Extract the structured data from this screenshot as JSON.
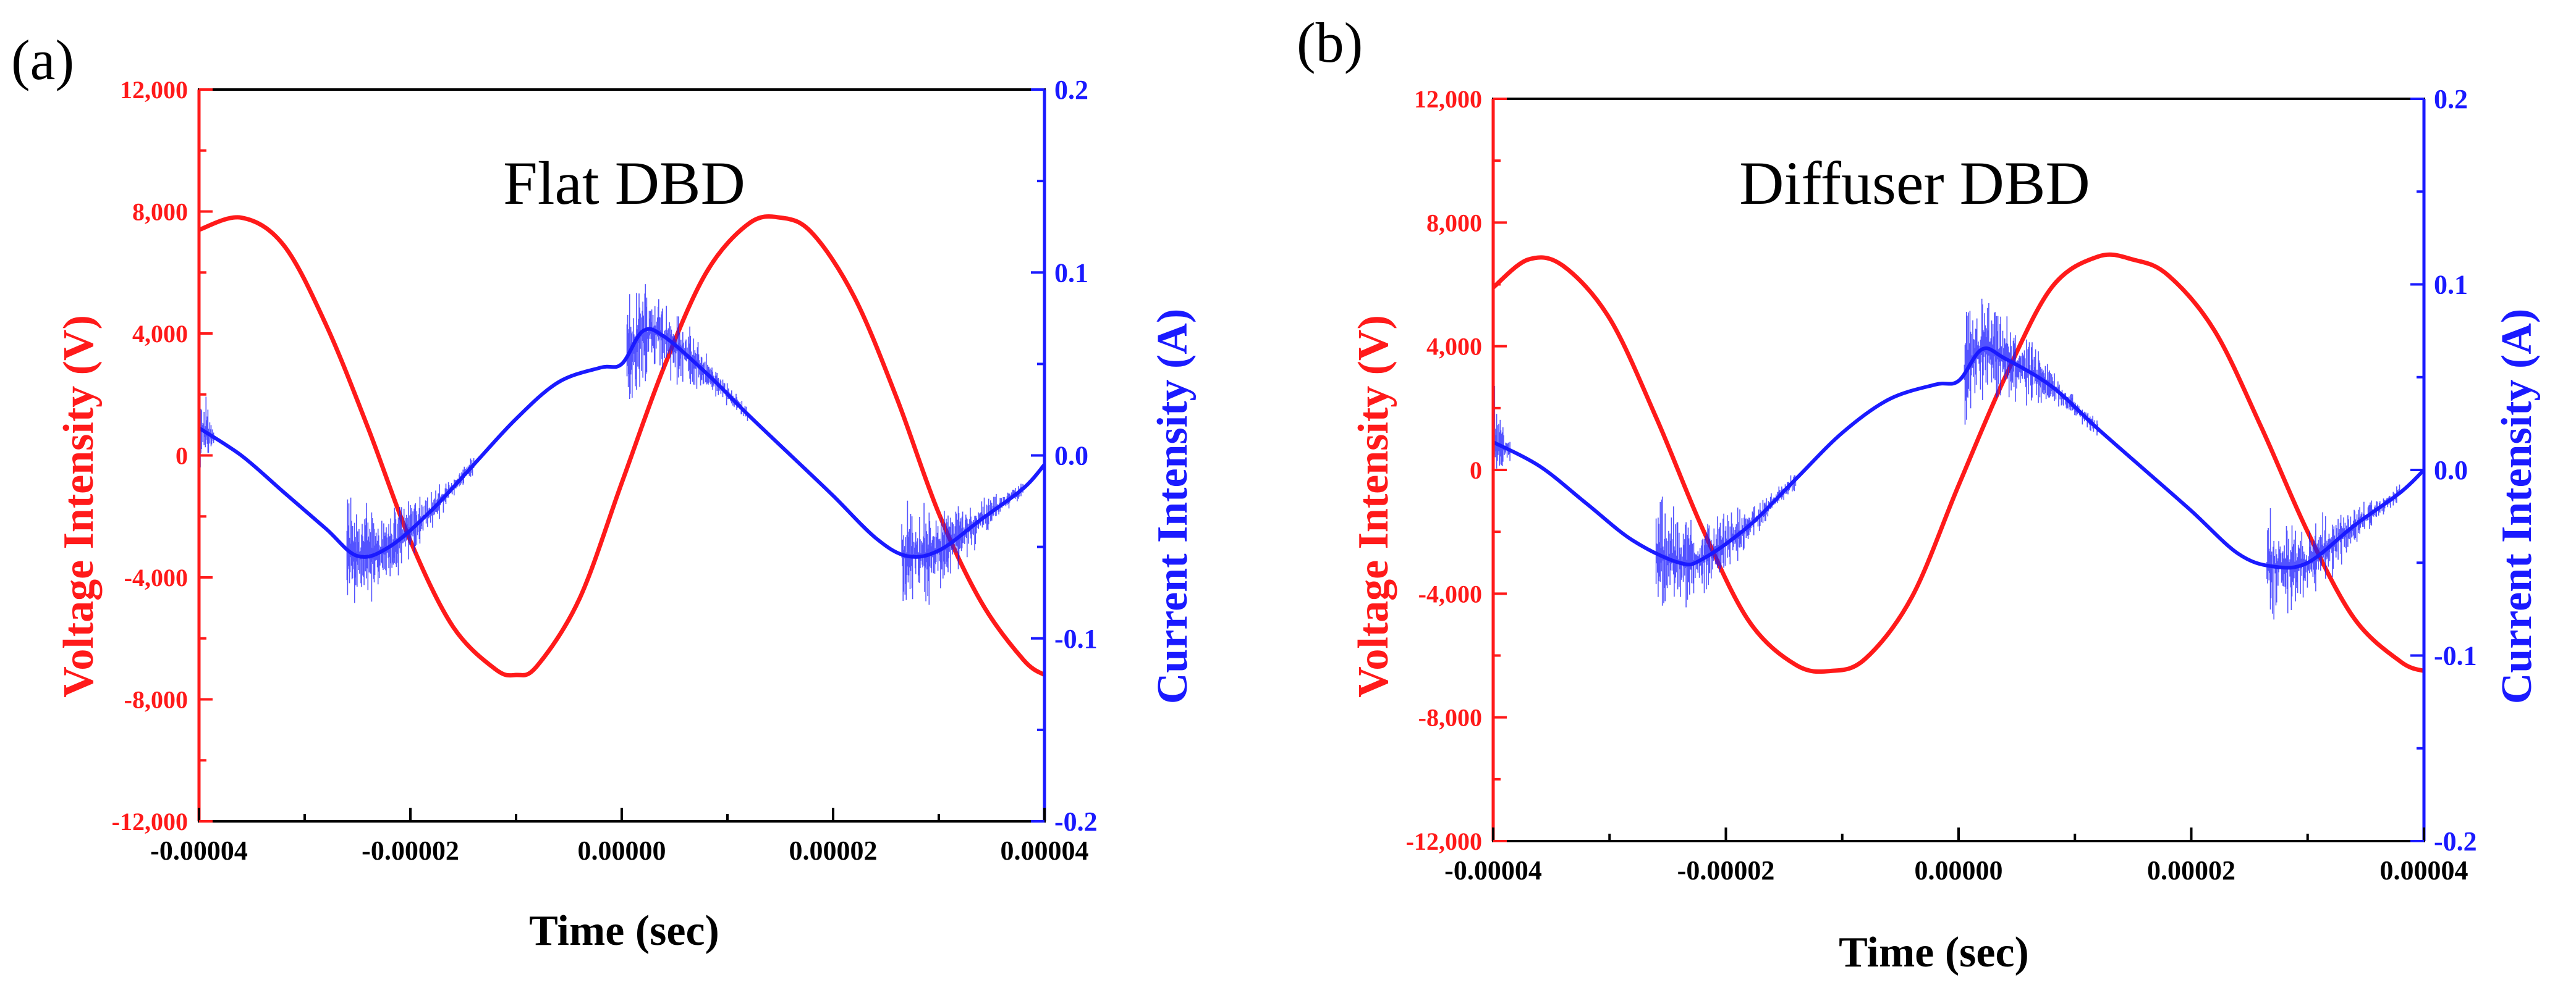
{
  "chart_data": [
    {
      "type": "line",
      "panel": "(a)",
      "title": "Flat   DBD",
      "xlabel": "Time (sec)",
      "ylabel_left": "Voltage Intensity (V)",
      "ylabel_right": "Current Intensity (A)",
      "xlim": [
        -4e-05,
        4e-05
      ],
      "ylim_left": [
        -12000,
        12000
      ],
      "ylim_right": [
        -0.2,
        0.2
      ],
      "x_ticks": [
        "-0.00004",
        "-0.00002",
        "0.00000",
        "0.00002",
        "0.00004"
      ],
      "x_tick_values": [
        -4e-05,
        -2e-05,
        0,
        2e-05,
        4e-05
      ],
      "y_left_ticks": [
        "12,000",
        "8,000",
        "4,000",
        "0",
        "-4,000",
        "-8,000",
        "-12,000"
      ],
      "y_left_tick_values": [
        12000,
        8000,
        4000,
        0,
        -4000,
        -8000,
        -12000
      ],
      "y_right_ticks": [
        "0.2",
        "0.1",
        "0.0",
        "-0.1",
        "-0.2"
      ],
      "y_right_tick_values": [
        0.2,
        0.1,
        0,
        -0.1,
        -0.2
      ],
      "colors": {
        "voltage": "#ff1a1a",
        "current": "#1a1aff",
        "frame": "#000000"
      },
      "series": [
        {
          "name": "Voltage",
          "axis": "left",
          "color": "#ff1a1a",
          "x": [
            -4e-05,
            -3.6e-05,
            -3.2e-05,
            -2.8e-05,
            -2.4e-05,
            -2e-05,
            -1.6e-05,
            -1.2e-05,
            -1e-05,
            -8e-06,
            -4e-06,
            0,
            4e-06,
            8e-06,
            1.2e-05,
            1.5e-05,
            1.8e-05,
            2.2e-05,
            2.6e-05,
            3e-05,
            3.4e-05,
            3.8e-05,
            4e-05
          ],
          "y": [
            7400,
            7800,
            6900,
            4300,
            900,
            -2800,
            -5600,
            -7000,
            -7200,
            -6900,
            -4700,
            -900,
            2900,
            6000,
            7600,
            7800,
            7300,
            5200,
            1900,
            -1900,
            -4800,
            -6700,
            -7200
          ]
        },
        {
          "name": "Current",
          "axis": "right",
          "color": "#1a1aff",
          "x": [
            -4e-05,
            -3.6e-05,
            -3.2e-05,
            -2.8e-05,
            -2.5e-05,
            -2.2e-05,
            -1.8e-05,
            -1.4e-05,
            -1e-05,
            -6e-06,
            -2e-06,
            0,
            2e-06,
            4e-06,
            8e-06,
            1.2e-05,
            1.6e-05,
            2e-05,
            2.4e-05,
            2.7e-05,
            3e-05,
            3.4e-05,
            3.8e-05,
            4e-05
          ],
          "y": [
            0.015,
            0.0,
            -0.02,
            -0.04,
            -0.055,
            -0.05,
            -0.03,
            -0.005,
            0.02,
            0.04,
            0.048,
            0.05,
            0.068,
            0.065,
            0.045,
            0.022,
            0.0,
            -0.022,
            -0.045,
            -0.055,
            -0.052,
            -0.035,
            -0.018,
            -0.005
          ]
        }
      ]
    },
    {
      "type": "line",
      "panel": "(b)",
      "title": "Diffuser DBD",
      "xlabel": "Time (sec)",
      "ylabel_left": "Voltage Intensity (V)",
      "ylabel_right": "Current Intensity (A)",
      "xlim": [
        -4e-05,
        4e-05
      ],
      "ylim_left": [
        -12000,
        12000
      ],
      "ylim_right": [
        -0.2,
        0.2
      ],
      "x_ticks": [
        "-0.00004",
        "-0.00002",
        "0.00000",
        "0.00002",
        "0.00004"
      ],
      "x_tick_values": [
        -4e-05,
        -2e-05,
        0,
        2e-05,
        4e-05
      ],
      "y_left_ticks": [
        "12,000",
        "8,000",
        "4,000",
        "0",
        "-4,000",
        "-8,000",
        "-12,000"
      ],
      "y_left_tick_values": [
        12000,
        8000,
        4000,
        0,
        -4000,
        -8000,
        -12000
      ],
      "y_right_ticks": [
        "0.2",
        "0.1",
        "0.0",
        "-0.1",
        "-0.2"
      ],
      "y_right_tick_values": [
        0.2,
        0.1,
        0,
        -0.1,
        -0.2
      ],
      "colors": {
        "voltage": "#ff1a1a",
        "current": "#1a1aff",
        "frame": "#000000"
      },
      "series": [
        {
          "name": "Voltage",
          "axis": "left",
          "color": "#ff1a1a",
          "x": [
            -4e-05,
            -3.7e-05,
            -3.4e-05,
            -3e-05,
            -2.6e-05,
            -2.2e-05,
            -1.8e-05,
            -1.4e-05,
            -1.1e-05,
            -8e-06,
            -4e-06,
            0,
            4e-06,
            8e-06,
            1.2e-05,
            1.5e-05,
            1.8e-05,
            2.2e-05,
            2.6e-05,
            3e-05,
            3.4e-05,
            3.8e-05,
            4e-05
          ],
          "y": [
            5900,
            6800,
            6600,
            4900,
            1700,
            -1900,
            -4900,
            -6300,
            -6500,
            -6100,
            -4100,
            -500,
            3000,
            5900,
            6900,
            6800,
            6300,
            4500,
            1400,
            -2000,
            -4800,
            -6200,
            -6500
          ]
        },
        {
          "name": "Current",
          "axis": "right",
          "color": "#1a1aff",
          "x": [
            -4e-05,
            -3.6e-05,
            -3.2e-05,
            -2.8e-05,
            -2.4e-05,
            -2.2e-05,
            -1.8e-05,
            -1.4e-05,
            -1e-05,
            -6e-06,
            -2e-06,
            0,
            2e-06,
            4e-06,
            8e-06,
            1.2e-05,
            1.6e-05,
            2e-05,
            2.4e-05,
            2.7e-05,
            3e-05,
            3.4e-05,
            3.8e-05,
            4e-05
          ],
          "y": [
            0.015,
            0.002,
            -0.018,
            -0.038,
            -0.05,
            -0.048,
            -0.03,
            -0.005,
            0.02,
            0.038,
            0.046,
            0.048,
            0.065,
            0.06,
            0.045,
            0.022,
            0.0,
            -0.022,
            -0.045,
            -0.052,
            -0.05,
            -0.03,
            -0.012,
            0.0
          ]
        }
      ]
    }
  ]
}
